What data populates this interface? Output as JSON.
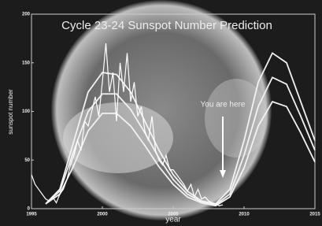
{
  "chart_data": {
    "type": "line",
    "title": "Cycle 23-24 Sunspot Number Prediction",
    "x_label": "year",
    "y_label": "sunspot number",
    "annotation": "You are here",
    "annotation_point": [
      2008.5,
      30
    ],
    "xlim": [
      1995,
      2015
    ],
    "ylim": [
      0,
      200
    ],
    "xticks": [
      1995,
      2000,
      2005,
      2010,
      2015
    ],
    "yticks": [
      0,
      50,
      100,
      150,
      200
    ],
    "x": [
      1996,
      1997,
      1998,
      1999,
      2000,
      2001,
      2002,
      2003,
      2004,
      2005,
      2006,
      2007,
      2008,
      2009,
      2010,
      2011,
      2012,
      2013,
      2014,
      2015
    ],
    "series": [
      {
        "color": "#f2f2f2",
        "values": [
          5,
          20,
          70,
          120,
          140,
          138,
          120,
          90,
          60,
          35,
          18,
          8,
          5,
          20,
          70,
          130,
          160,
          150,
          110,
          70
        ]
      },
      {
        "color": "#f2f2f2",
        "values": [
          5,
          18,
          60,
          100,
          118,
          118,
          102,
          78,
          52,
          30,
          15,
          7,
          4,
          15,
          55,
          105,
          135,
          128,
          95,
          60
        ]
      },
      {
        "color": "#f2f2f2",
        "values": [
          5,
          15,
          45,
          80,
          98,
          98,
          85,
          65,
          43,
          25,
          12,
          6,
          3,
          12,
          42,
          85,
          110,
          105,
          78,
          48
        ]
      },
      {
        "color": "#ffffff",
        "x": [
          1995,
          1995.25,
          1995.5,
          1995.75,
          1996,
          1996.25,
          1996.5,
          1996.75,
          1997,
          1997.25,
          1997.5,
          1997.75,
          1998,
          1998.25,
          1998.5,
          1998.75,
          1999,
          1999.25,
          1999.5,
          1999.75,
          2000,
          2000.25,
          2000.5,
          2000.75,
          2001,
          2001.25,
          2001.5,
          2001.75,
          2002,
          2002.25,
          2002.5,
          2002.75,
          2003,
          2003.25,
          2003.5,
          2003.75,
          2004,
          2004.25,
          2004.5,
          2004.75,
          2005,
          2005.25,
          2005.5,
          2005.75,
          2006,
          2006.25,
          2006.5,
          2006.75,
          2007,
          2007.25,
          2007.5,
          2007.75,
          2008,
          2008.25,
          2008.5
        ],
        "values": [
          35,
          25,
          20,
          15,
          10,
          8,
          12,
          6,
          15,
          20,
          30,
          45,
          55,
          70,
          60,
          90,
          85,
          100,
          115,
          95,
          130,
          170,
          120,
          140,
          90,
          150,
          120,
          160,
          110,
          130,
          95,
          105,
          80,
          70,
          95,
          60,
          50,
          45,
          55,
          40,
          40,
          35,
          30,
          25,
          18,
          25,
          12,
          20,
          10,
          12,
          8,
          6,
          5,
          3,
          4
        ]
      }
    ]
  }
}
